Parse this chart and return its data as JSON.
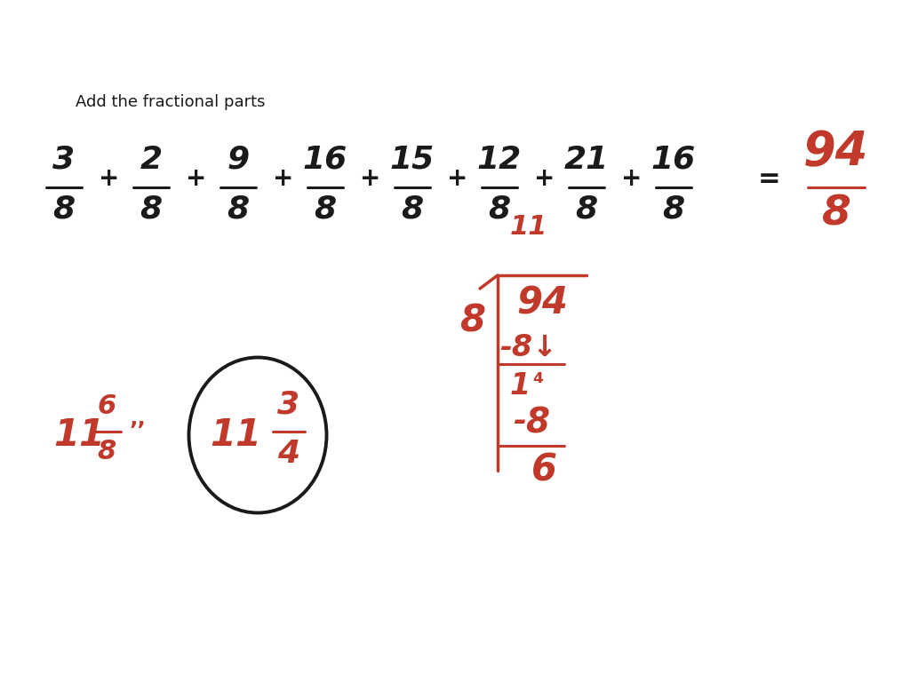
{
  "bg_color": "#ffffff",
  "text_color_black": "#1a1a1a",
  "text_color_red": "#c0392b",
  "label_text": "Add the fractional parts",
  "figsize": [
    10.24,
    7.68
  ],
  "dpi": 100,
  "fracs_row": [
    [
      "3",
      "8"
    ],
    [
      "2",
      "8"
    ],
    [
      "9",
      "8"
    ],
    [
      "16",
      "8"
    ],
    [
      "15",
      "8"
    ],
    [
      "12",
      "8"
    ],
    [
      "21",
      "8"
    ],
    [
      "16",
      "8"
    ]
  ],
  "result_num": "94",
  "result_den": "8"
}
